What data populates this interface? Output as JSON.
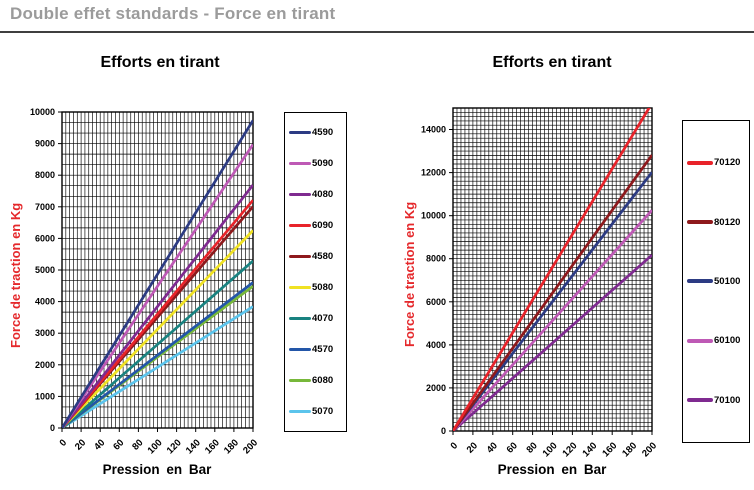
{
  "header": {
    "title": "Double effet standards - Force en tirant"
  },
  "colors": {
    "header_text": "#9B9B9B",
    "header_rule": "#3F3F3F",
    "axis_label_red": "#E5282B",
    "grid": "#000000"
  },
  "chart_data": [
    {
      "type": "line",
      "title": "Efforts en tirant",
      "xlabel": "Pression en Bar",
      "ylabel": "Force de traction en Kg",
      "xlim": [
        0,
        200
      ],
      "ylim": [
        0,
        10000
      ],
      "x_ticks": [
        0,
        20,
        40,
        60,
        80,
        100,
        120,
        140,
        160,
        180,
        200
      ],
      "y_ticks": [
        0,
        1000,
        2000,
        3000,
        4000,
        5000,
        6000,
        7000,
        8000,
        9000,
        10000
      ],
      "grid": "fine black minor grid on",
      "legend_position": "right",
      "x": [
        0,
        200
      ],
      "series": [
        {
          "name": "4590",
          "color": "#2C3B83",
          "values": [
            0,
            9733
          ]
        },
        {
          "name": "5090",
          "color": "#BE59B5",
          "values": [
            0,
            8971
          ]
        },
        {
          "name": "4080",
          "color": "#7F2A90",
          "values": [
            0,
            7690
          ]
        },
        {
          "name": "6090",
          "color": "#E8232A",
          "values": [
            0,
            7210
          ]
        },
        {
          "name": "4580",
          "color": "#8E191C",
          "values": [
            0,
            7009
          ]
        },
        {
          "name": "5080",
          "color": "#F0E224",
          "values": [
            0,
            6249
          ]
        },
        {
          "name": "4070",
          "color": "#198280",
          "values": [
            0,
            5287
          ]
        },
        {
          "name": "4570",
          "color": "#2356A8",
          "values": [
            0,
            4606
          ]
        },
        {
          "name": "6080",
          "color": "#77B83A",
          "values": [
            0,
            4486
          ]
        },
        {
          "name": "5070",
          "color": "#5BC4EC",
          "values": [
            0,
            3845
          ]
        }
      ]
    },
    {
      "type": "line",
      "title": "Efforts en tirant",
      "xlabel": "Pression en Bar",
      "ylabel": "Force de traction en Kg",
      "xlim": [
        0,
        200
      ],
      "ylim": [
        0,
        15000
      ],
      "x_ticks": [
        0,
        20,
        40,
        60,
        80,
        100,
        120,
        140,
        160,
        180,
        200
      ],
      "y_ticks": [
        0,
        2000,
        4000,
        6000,
        8000,
        10000,
        12000,
        14000
      ],
      "grid": "fine black minor grid on",
      "legend_position": "right",
      "x": [
        0,
        200
      ],
      "series": [
        {
          "name": "70120",
          "color": "#E8232A",
          "values": [
            0,
            15222
          ]
        },
        {
          "name": "80120",
          "color": "#8E191C",
          "values": [
            0,
            12819
          ]
        },
        {
          "name": "50100",
          "color": "#2C3B83",
          "values": [
            0,
            12017
          ]
        },
        {
          "name": "60100",
          "color": "#BE59B5",
          "values": [
            0,
            10255
          ]
        },
        {
          "name": "70100",
          "color": "#7F2A90",
          "values": [
            0,
            8173
          ]
        }
      ]
    }
  ]
}
